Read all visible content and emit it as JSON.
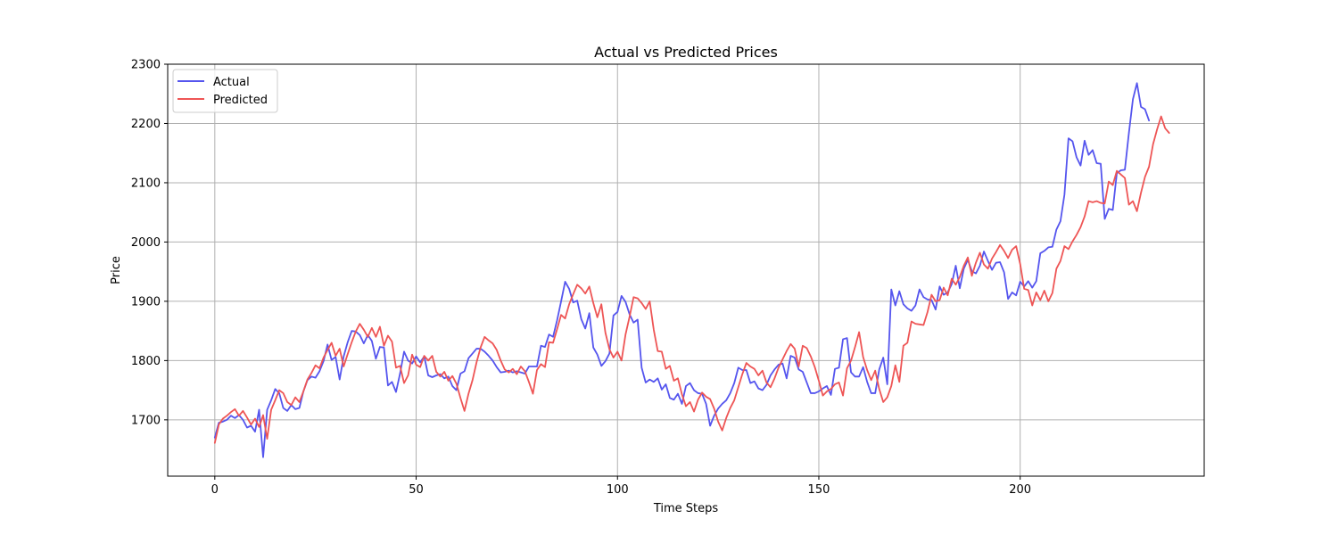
{
  "chart_data": {
    "type": "line",
    "title": "Actual vs Predicted Prices",
    "xlabel": "Time Steps",
    "ylabel": "Price",
    "xlim": [
      -11.7,
      245.7
    ],
    "ylim": [
      1605,
      2300
    ],
    "xticks": [
      0,
      50,
      100,
      150,
      200
    ],
    "yticks": [
      1700,
      1800,
      1900,
      2000,
      2100,
      2200,
      2300
    ],
    "grid": true,
    "legend_position": "top-left",
    "series": [
      {
        "name": "Actual",
        "color": "#5555ee",
        "values": [
          1670,
          1695,
          1697,
          1700,
          1707,
          1703,
          1708,
          1700,
          1687,
          1690,
          1680,
          1717,
          1637,
          1717,
          1733,
          1752,
          1745,
          1720,
          1715,
          1725,
          1718,
          1720,
          1748,
          1767,
          1773,
          1771,
          1782,
          1799,
          1827,
          1801,
          1806,
          1768,
          1807,
          1831,
          1850,
          1849,
          1843,
          1829,
          1843,
          1833,
          1803,
          1823,
          1822,
          1758,
          1764,
          1747,
          1778,
          1815,
          1800,
          1795,
          1807,
          1797,
          1807,
          1775,
          1772,
          1775,
          1777,
          1770,
          1773,
          1757,
          1750,
          1778,
          1782,
          1804,
          1812,
          1820,
          1820,
          1815,
          1808,
          1800,
          1789,
          1780,
          1781,
          1783,
          1780,
          1782,
          1780,
          1778,
          1790,
          1790,
          1790,
          1825,
          1823,
          1844,
          1840,
          1868,
          1900,
          1933,
          1921,
          1898,
          1901,
          1870,
          1854,
          1880,
          1822,
          1810,
          1791,
          1799,
          1812,
          1876,
          1882,
          1909,
          1899,
          1878,
          1864,
          1869,
          1788,
          1763,
          1768,
          1764,
          1770,
          1751,
          1760,
          1737,
          1734,
          1744,
          1727,
          1757,
          1762,
          1750,
          1745,
          1744,
          1727,
          1690,
          1707,
          1719,
          1727,
          1733,
          1745,
          1762,
          1788,
          1784,
          1784,
          1762,
          1765,
          1753,
          1750,
          1759,
          1775,
          1785,
          1793,
          1795,
          1770,
          1808,
          1805,
          1785,
          1781,
          1763,
          1745,
          1745,
          1748,
          1753,
          1757,
          1742,
          1786,
          1788,
          1836,
          1838,
          1780,
          1773,
          1773,
          1789,
          1764,
          1745,
          1745,
          1785,
          1805,
          1760,
          1920,
          1893,
          1917,
          1895,
          1888,
          1884,
          1893,
          1920,
          1907,
          1903,
          1902,
          1886,
          1925,
          1911,
          1915,
          1929,
          1960,
          1922,
          1955,
          1970,
          1951,
          1947,
          1960,
          1984,
          1968,
          1953,
          1965,
          1966,
          1949,
          1904,
          1915,
          1910,
          1933,
          1925,
          1934,
          1923,
          1934,
          1981,
          1985,
          1991,
          1992,
          2021,
          2035,
          2080,
          2175,
          2170,
          2143,
          2129,
          2171,
          2147,
          2155,
          2133,
          2132,
          2039,
          2056,
          2054,
          2116,
          2121,
          2122,
          2184,
          2241,
          2268,
          2228,
          2224,
          2205
        ]
      },
      {
        "name": "Predicted",
        "color": "#ee5555",
        "values": [
          1661,
          1692,
          1702,
          1707,
          1713,
          1718,
          1707,
          1715,
          1704,
          1692,
          1702,
          1688,
          1708,
          1668,
          1717,
          1733,
          1750,
          1745,
          1730,
          1725,
          1738,
          1730,
          1748,
          1768,
          1779,
          1792,
          1787,
          1805,
          1818,
          1830,
          1808,
          1820,
          1790,
          1811,
          1831,
          1849,
          1862,
          1852,
          1840,
          1855,
          1840,
          1857,
          1825,
          1842,
          1832,
          1788,
          1791,
          1762,
          1775,
          1810,
          1793,
          1789,
          1808,
          1800,
          1808,
          1781,
          1773,
          1781,
          1766,
          1774,
          1761,
          1737,
          1715,
          1744,
          1767,
          1797,
          1822,
          1840,
          1834,
          1829,
          1818,
          1800,
          1785,
          1780,
          1786,
          1777,
          1790,
          1782,
          1764,
          1744,
          1784,
          1794,
          1789,
          1831,
          1830,
          1853,
          1877,
          1871,
          1895,
          1912,
          1928,
          1922,
          1913,
          1925,
          1897,
          1873,
          1895,
          1847,
          1819,
          1805,
          1815,
          1800,
          1844,
          1874,
          1907,
          1905,
          1897,
          1887,
          1900,
          1852,
          1816,
          1815,
          1786,
          1791,
          1766,
          1770,
          1743,
          1723,
          1730,
          1714,
          1734,
          1746,
          1739,
          1735,
          1719,
          1697,
          1682,
          1703,
          1720,
          1733,
          1755,
          1777,
          1796,
          1790,
          1786,
          1775,
          1783,
          1763,
          1755,
          1770,
          1788,
          1802,
          1816,
          1828,
          1820,
          1790,
          1825,
          1821,
          1807,
          1789,
          1766,
          1741,
          1748,
          1752,
          1760,
          1763,
          1741,
          1787,
          1800,
          1823,
          1848,
          1806,
          1784,
          1767,
          1783,
          1752,
          1730,
          1738,
          1757,
          1792,
          1764,
          1825,
          1830,
          1866,
          1862,
          1861,
          1860,
          1882,
          1911,
          1900,
          1902,
          1923,
          1910,
          1938,
          1928,
          1941,
          1960,
          1974,
          1943,
          1965,
          1982,
          1962,
          1955,
          1972,
          1983,
          1995,
          1985,
          1973,
          1987,
          1993,
          1963,
          1921,
          1919,
          1893,
          1915,
          1902,
          1918,
          1900,
          1914,
          1955,
          1968,
          1993,
          1988,
          2001,
          2012,
          2025,
          2043,
          2069,
          2067,
          2069,
          2066,
          2065,
          2102,
          2096,
          2120,
          2114,
          2108,
          2063,
          2069,
          2052,
          2083,
          2110,
          2127,
          2165,
          2190,
          2212,
          2192,
          2184
        ]
      }
    ]
  }
}
